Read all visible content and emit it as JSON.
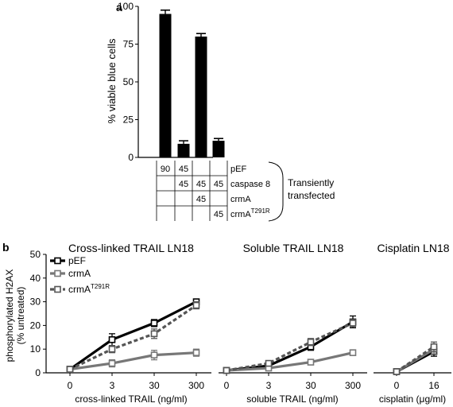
{
  "panel_a": {
    "panel_label": "a",
    "chart_data": {
      "type": "bar",
      "ylabel": "% viable blue cells",
      "ylim": [
        0,
        100
      ],
      "yticks": [
        0,
        25,
        50,
        75,
        100
      ],
      "values": [
        95,
        9,
        80,
        11
      ],
      "errors": [
        2.5,
        2,
        2,
        1.5
      ],
      "bar_color": "#000000"
    },
    "table": {
      "rows": [
        {
          "label": "pEF",
          "cells": [
            "90",
            "45",
            "",
            ""
          ]
        },
        {
          "label": "caspase 8",
          "cells": [
            "",
            "45",
            "45",
            "45"
          ]
        },
        {
          "label": "crmA",
          "cells": [
            "",
            "",
            "45",
            ""
          ]
        },
        {
          "label": "crmA",
          "label_sup": "T291R",
          "cells": [
            "",
            "",
            "",
            "45"
          ]
        }
      ],
      "bracket_label_line1": "Transiently",
      "bracket_label_line2": "transfected"
    }
  },
  "panel_b": {
    "panel_label": "b",
    "ylabel_line1": "phosphorylated H2AX",
    "ylabel_line2": "(% untreated)",
    "ylim": [
      0,
      50
    ],
    "yticks": [
      0,
      10,
      20,
      30,
      40,
      50
    ],
    "legend": [
      {
        "name": "pEF",
        "color": "#000000",
        "dash": false
      },
      {
        "name": "crmA",
        "color": "#777777",
        "dash": false
      },
      {
        "name": "crmA",
        "sup": "T291R",
        "color": "#555555",
        "dash": true
      }
    ],
    "chart_data": [
      {
        "type": "line",
        "title": "Cross-linked TRAIL LN18",
        "xlabel": "cross-linked TRAIL (ng/ml)",
        "x": [
          "0",
          "3",
          "30",
          "300"
        ],
        "series": [
          {
            "name": "pEF",
            "values": [
              1.5,
              14,
              21,
              30
            ],
            "errors": [
              1,
              2.5,
              1.5,
              1
            ]
          },
          {
            "name": "crmA",
            "values": [
              1.5,
              4,
              7.5,
              8.5
            ],
            "errors": [
              0.5,
              1.5,
              2,
              1.5
            ]
          },
          {
            "name": "crmA T291R",
            "values": [
              1.5,
              10,
              16.5,
              28.5
            ],
            "errors": [
              0.5,
              1.5,
              2,
              1.5
            ]
          }
        ]
      },
      {
        "type": "line",
        "title": "Soluble TRAIL LN18",
        "xlabel": "soluble TRAIL (ng/ml)",
        "x": [
          "0",
          "3",
          "30",
          "300"
        ],
        "series": [
          {
            "name": "pEF",
            "values": [
              1,
              3,
              11,
              21.5
            ],
            "errors": [
              0.5,
              0.5,
              1.5,
              2.5
            ]
          },
          {
            "name": "crmA",
            "values": [
              1,
              2,
              4.5,
              8.5
            ],
            "errors": [
              0.5,
              0.5,
              0.5,
              0.5
            ]
          },
          {
            "name": "crmA T291R",
            "values": [
              1,
              4,
              13,
              21
            ],
            "errors": [
              0.5,
              0.5,
              1.5,
              1.5
            ]
          }
        ]
      },
      {
        "type": "line",
        "title": "Cisplatin LN18",
        "xlabel": "cisplatin (μg/ml)",
        "x": [
          "0",
          "16"
        ],
        "series": [
          {
            "name": "pEF",
            "values": [
              0.5,
              9
            ],
            "errors": [
              0.3,
              2
            ]
          },
          {
            "name": "crmA",
            "values": [
              0.5,
              10
            ],
            "errors": [
              0.3,
              2
            ]
          },
          {
            "name": "crmA T291R",
            "values": [
              0.5,
              11
            ],
            "errors": [
              0.3,
              2
            ]
          }
        ]
      }
    ]
  }
}
